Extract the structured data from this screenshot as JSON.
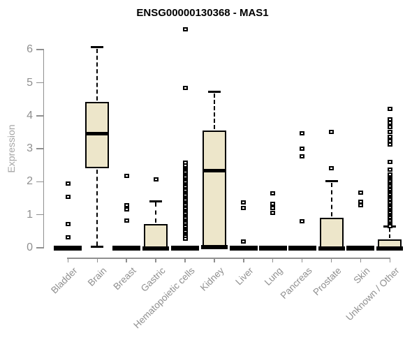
{
  "chart_data": {
    "type": "boxplot",
    "title": "ENSG00000130368 - MAS1",
    "ylabel": "Expression",
    "xlabel": "",
    "ylim": [
      0,
      6
    ],
    "yticks": [
      0,
      1,
      2,
      3,
      4,
      5,
      6
    ],
    "grid": false,
    "legend": "none",
    "categories": [
      "Bladder",
      "Brain",
      "Breast",
      "Gastric",
      "Hematopoietic cells",
      "Kidney",
      "Liver",
      "Lung",
      "Pancreas",
      "Prostate",
      "Skin",
      "Unknown / Other"
    ],
    "series": [
      {
        "name": "Bladder",
        "flat": true,
        "q1": 0,
        "median": 0,
        "q3": 0,
        "whisker_low": 0,
        "whisker_high": 0,
        "outliers": [
          1.95,
          1.55,
          0.72,
          0.32
        ]
      },
      {
        "name": "Brain",
        "flat": false,
        "q1": 2.4,
        "median": 3.45,
        "q3": 4.41,
        "whisker_low": 0.03,
        "whisker_high": 6.07,
        "outliers": []
      },
      {
        "name": "Breast",
        "flat": true,
        "q1": 0,
        "median": 0,
        "q3": 0,
        "whisker_low": 0,
        "whisker_high": 0,
        "outliers": [
          2.18,
          1.28,
          1.17,
          0.83
        ]
      },
      {
        "name": "Gastric",
        "flat": false,
        "q1": 0,
        "median": 0.03,
        "q3": 0.71,
        "whisker_low": 0,
        "whisker_high": 1.41,
        "outliers": [
          2.07
        ]
      },
      {
        "name": "Hematopoietic cells",
        "flat": true,
        "q1": 0,
        "median": 0,
        "q3": 0,
        "whisker_low": 0,
        "whisker_high": 0,
        "outliers": [
          6.62,
          4.85,
          2.58,
          2.5,
          2.37,
          2.33,
          2.28,
          2.23,
          2.18,
          2.13,
          2.08,
          2.03,
          1.98,
          1.93,
          1.88,
          1.83,
          1.78,
          1.73,
          1.68,
          1.63,
          1.58,
          1.53,
          1.48,
          1.43,
          1.38,
          1.33,
          1.28,
          1.23,
          1.18,
          1.13,
          1.08,
          1.03,
          0.98,
          0.93,
          0.88,
          0.83,
          0.78,
          0.73,
          0.68,
          0.63,
          0.58,
          0.53,
          0.48,
          0.43,
          0.38,
          0.33,
          0.28
        ]
      },
      {
        "name": "Kidney",
        "flat": false,
        "q1": 0.05,
        "median": 2.33,
        "q3": 3.55,
        "whisker_low": 0,
        "whisker_high": 4.72,
        "outliers": []
      },
      {
        "name": "Liver",
        "flat": true,
        "q1": 0,
        "median": 0,
        "q3": 0,
        "whisker_low": 0,
        "whisker_high": 0,
        "outliers": [
          1.38,
          1.21,
          0.18
        ]
      },
      {
        "name": "Lung",
        "flat": true,
        "q1": 0,
        "median": 0,
        "q3": 0,
        "whisker_low": 0,
        "whisker_high": 0,
        "outliers": [
          1.65,
          1.33,
          1.21,
          1.06
        ]
      },
      {
        "name": "Pancreas",
        "flat": true,
        "q1": 0,
        "median": 0,
        "q3": 0,
        "whisker_low": 0,
        "whisker_high": 0,
        "outliers": [
          3.46,
          3.01,
          2.78,
          0.81
        ]
      },
      {
        "name": "Prostate",
        "flat": false,
        "q1": 0,
        "median": 0.03,
        "q3": 0.9,
        "whisker_low": 0,
        "whisker_high": 2.01,
        "outliers": [
          3.52,
          2.42
        ]
      },
      {
        "name": "Skin",
        "flat": true,
        "q1": 0,
        "median": 0,
        "q3": 0,
        "whisker_low": 0,
        "whisker_high": 0,
        "outliers": [
          1.68,
          1.39,
          1.29
        ]
      },
      {
        "name": "Unknown / Other",
        "flat": false,
        "q1": 0,
        "median": 0.04,
        "q3": 0.26,
        "whisker_low": 0,
        "whisker_high": 0.64,
        "outliers": [
          4.21,
          3.9,
          3.79,
          3.65,
          3.52,
          3.37,
          3.23,
          3.12,
          2.61,
          2.37,
          2.21,
          2.1,
          2.05,
          2.0,
          1.95,
          1.9,
          1.85,
          1.8,
          1.75,
          1.7,
          1.65,
          1.6,
          1.55,
          1.5,
          1.45,
          1.4,
          1.35,
          1.3,
          1.25,
          1.2,
          1.15,
          1.1,
          1.05,
          1.0,
          0.95,
          0.9,
          0.85,
          0.8,
          0.75,
          0.7,
          0.66
        ]
      }
    ],
    "colors": {
      "box_fill": "#EDE6CA",
      "box_border": "#000000",
      "axis": "#8f8f8f",
      "tick_label": "#8f8f8f",
      "axis_label": "#a6a6a6",
      "title": "#000000",
      "background": "#ffffff"
    }
  }
}
